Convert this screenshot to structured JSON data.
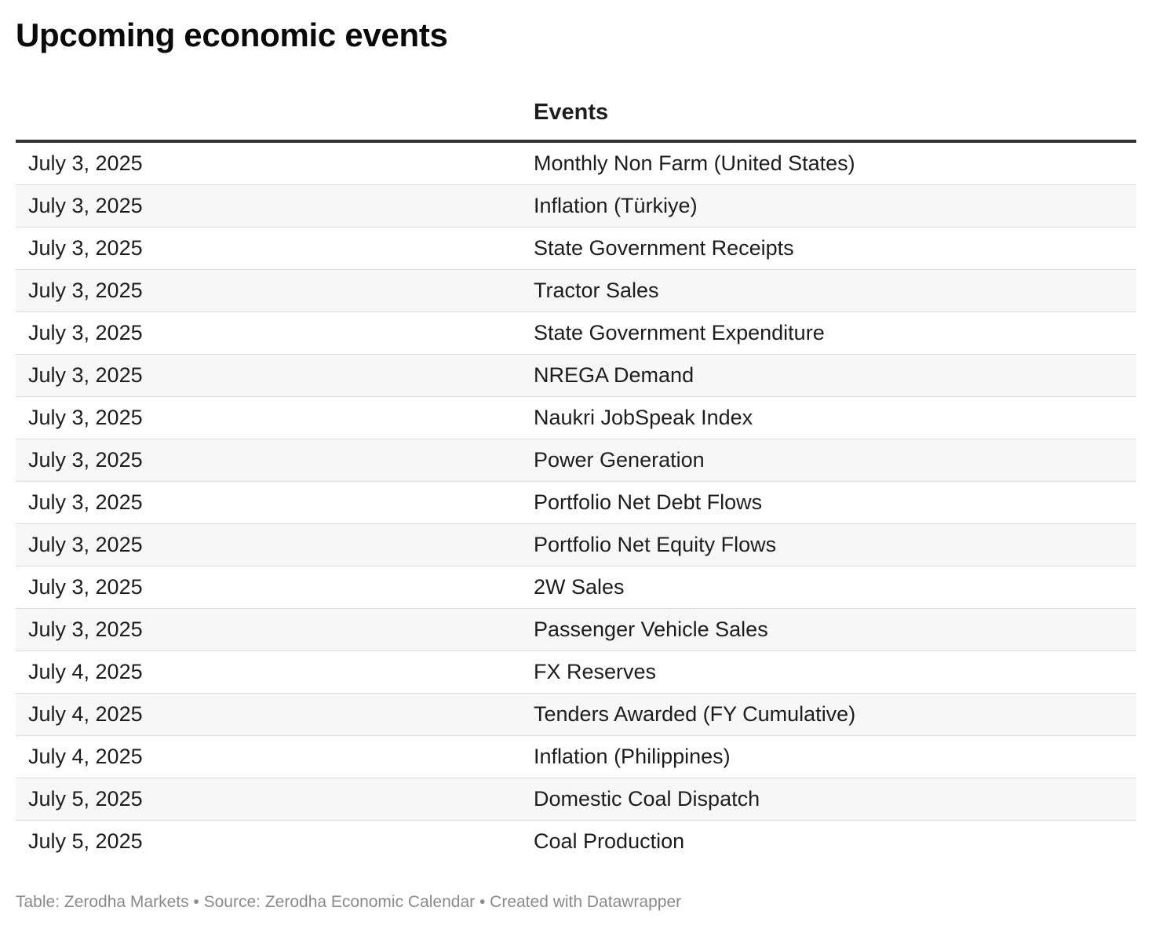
{
  "title": "Upcoming economic events",
  "footer": "Table: Zerodha Markets • Source: Zerodha Economic Calendar • Created with Datawrapper",
  "chart_data": {
    "type": "table",
    "title": "Upcoming economic events",
    "columns": [
      "",
      "Events"
    ],
    "rows": [
      [
        "July 3, 2025",
        "Monthly Non Farm (United States)"
      ],
      [
        "July 3, 2025",
        "Inflation (Türkiye)"
      ],
      [
        "July 3, 2025",
        "State Government Receipts"
      ],
      [
        "July 3, 2025",
        "Tractor Sales"
      ],
      [
        "July 3, 2025",
        "State Government Expenditure"
      ],
      [
        "July 3, 2025",
        "NREGA Demand"
      ],
      [
        "July 3, 2025",
        "Naukri JobSpeak Index"
      ],
      [
        "July 3, 2025",
        "Power Generation"
      ],
      [
        "July 3, 2025",
        "Portfolio Net Debt Flows"
      ],
      [
        "July 3, 2025",
        "Portfolio Net Equity Flows"
      ],
      [
        "July 3, 2025",
        "2W Sales"
      ],
      [
        "July 3, 2025",
        "Passenger Vehicle Sales"
      ],
      [
        "July 4, 2025",
        "FX Reserves"
      ],
      [
        "July 4, 2025",
        "Tenders Awarded (FY Cumulative)"
      ],
      [
        "July 4, 2025",
        "Inflation (Philippines)"
      ],
      [
        "July 5, 2025",
        "Domestic Coal Dispatch"
      ],
      [
        "July 5, 2025",
        "Coal Production"
      ]
    ],
    "colors": {
      "text": "#1d1d1d",
      "header_rule": "#333333",
      "row_rule": "#dddddd",
      "stripe": "#f7f7f7",
      "footer": "#8a8a8a"
    }
  }
}
